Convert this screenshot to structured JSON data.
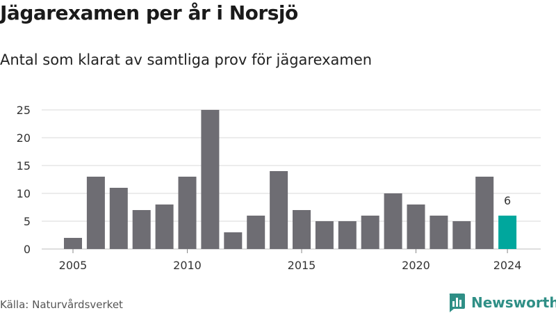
{
  "title": "Jägarexamen per år i Norsjö",
  "subtitle": "Antal som klarat av samtliga prov för jägarexamen",
  "source": "Källa: Naturvårdsverket",
  "brand": "Newsworthy",
  "colors": {
    "bar": "#6e6d73",
    "highlight": "#00a79d",
    "grid": "#d9d9d9",
    "brand": "#2f8f86"
  },
  "icons": {
    "brand_logo": "bar-chart-bubble-icon"
  },
  "chart_data": {
    "type": "bar",
    "title": "Jägarexamen per år i Norsjö",
    "subtitle": "Antal som klarat av samtliga prov för jägarexamen",
    "xlabel": "",
    "ylabel": "",
    "x": [
      2005,
      2006,
      2007,
      2008,
      2009,
      2010,
      2011,
      2012,
      2013,
      2014,
      2015,
      2016,
      2017,
      2018,
      2019,
      2020,
      2021,
      2022,
      2023,
      2024
    ],
    "values": [
      2,
      13,
      11,
      7,
      8,
      13,
      25,
      3,
      6,
      14,
      7,
      5,
      5,
      6,
      10,
      8,
      6,
      5,
      13,
      6
    ],
    "highlight_index": 19,
    "data_labels": [
      {
        "x": 2024,
        "text": "6"
      }
    ],
    "ylim": [
      0,
      25
    ],
    "yticks": [
      0,
      5,
      10,
      15,
      20,
      25
    ],
    "xtick_labels": [
      "2005",
      "2010",
      "2015",
      "2020",
      "2024"
    ],
    "grid": true,
    "legend": "none"
  }
}
